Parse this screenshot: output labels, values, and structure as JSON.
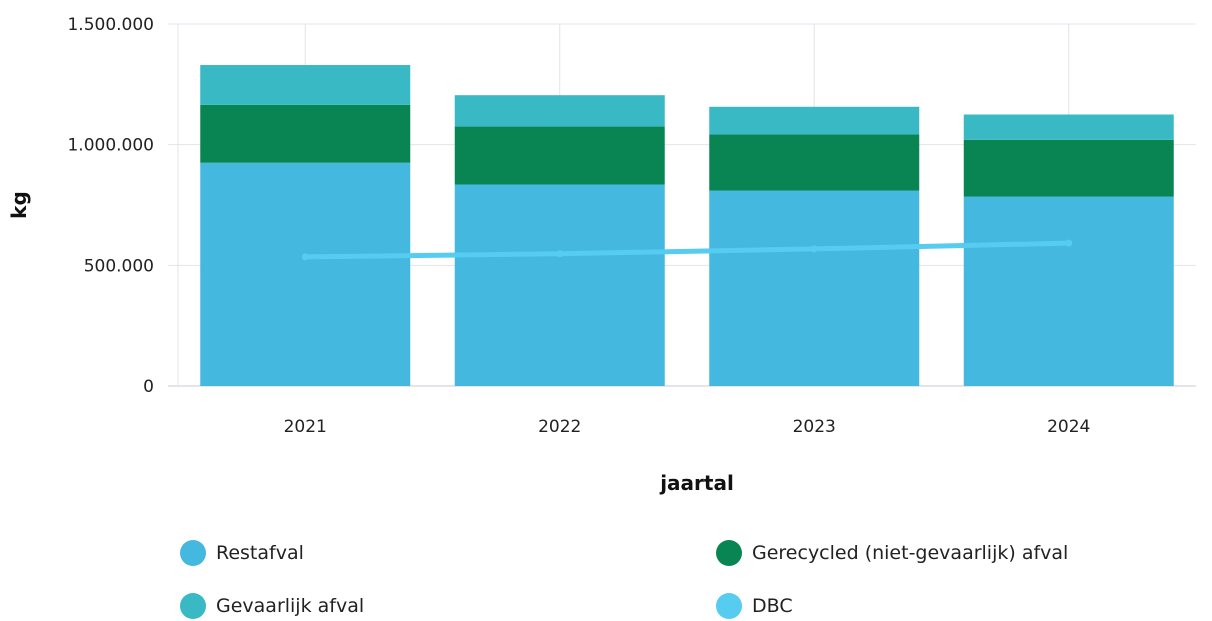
{
  "chart_data": {
    "type": "bar",
    "stacked": true,
    "categories": [
      "2021",
      "2022",
      "2023",
      "2024"
    ],
    "xlabel": "jaartal",
    "ylabel": "kg",
    "ylim": [
      0,
      1500000
    ],
    "yticks": [
      0,
      500000,
      1000000,
      1500000
    ],
    "ytick_labels": [
      "0",
      "500.000",
      "1.000.000",
      "1.500.000"
    ],
    "grid": true,
    "legend_position": "bottom",
    "series": [
      {
        "name": "Restafval",
        "type": "bar",
        "color": "#45B8E0",
        "values": [
          925000,
          835000,
          810000,
          785000
        ]
      },
      {
        "name": "Gerecycled (niet-gevaarlijk) afval",
        "type": "bar",
        "color": "#088553",
        "values": [
          240000,
          240000,
          232000,
          235000
        ]
      },
      {
        "name": "Gevaarlijk afval",
        "type": "bar",
        "color": "#38B9C4",
        "values": [
          165000,
          130000,
          115000,
          105000
        ]
      },
      {
        "name": "DBC",
        "type": "line",
        "color": "#55CCF0",
        "values": [
          535000,
          548000,
          568000,
          592000
        ]
      }
    ]
  }
}
